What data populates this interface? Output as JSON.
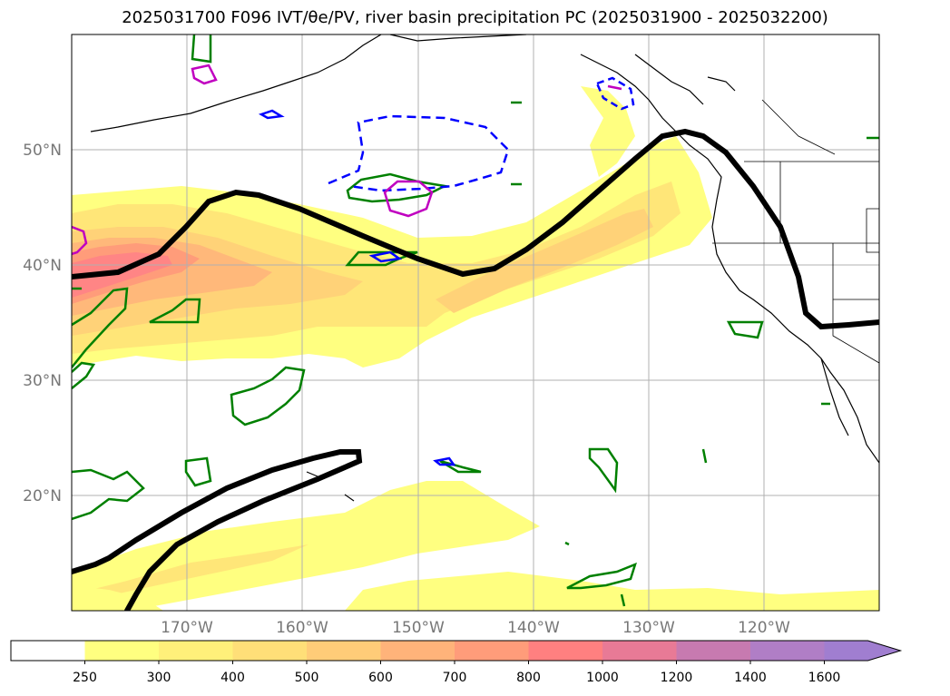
{
  "title": "2025031700 F096 IVT/θe/PV, river basin precipitation PC (2025031900 - 2025032200)",
  "map": {
    "lat_labels": [
      "50°N",
      "40°N",
      "30°N",
      "20°N"
    ],
    "lon_labels": [
      "170°W",
      "160°W",
      "150°W",
      "140°W",
      "130°W",
      "120°W"
    ]
  },
  "colorbar": {
    "levels": [
      "250",
      "300",
      "400",
      "500",
      "600",
      "700",
      "800",
      "1000",
      "1200",
      "1400",
      "1600"
    ],
    "colors": [
      "#ffffff",
      "#ffff80",
      "#fff07a",
      "#ffdf78",
      "#ffcc78",
      "#ffb37a",
      "#ff9c7a",
      "#ff8080",
      "#e87a96",
      "#c77ab0",
      "#b07ec6",
      "#a07ed0"
    ],
    "extend": "max"
  },
  "colors": {
    "theta_e": "#000000",
    "pv_green": "#008000",
    "pv_blue": "#0000ff",
    "pv_magenta": "#c000c0"
  }
}
